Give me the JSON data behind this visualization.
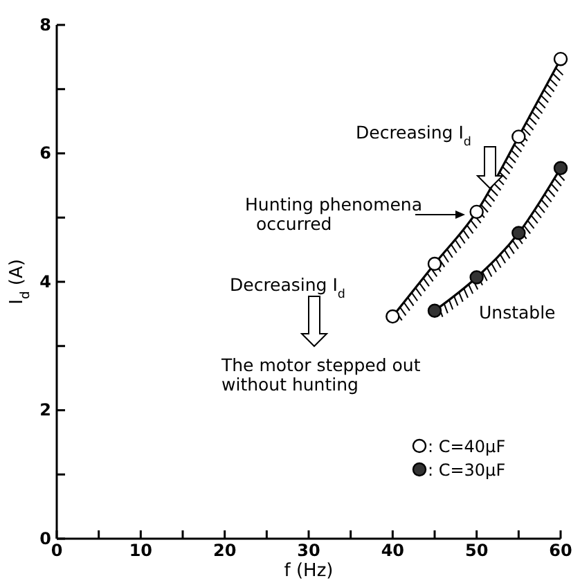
{
  "chart_data": {
    "type": "line",
    "xlabel": "f (Hz)",
    "ylabel": "I$_{d}$ (A)",
    "xlim": [
      0,
      60
    ],
    "xticks": [
      0,
      {
        "value": 5,
        "label": null
      },
      10,
      {
        "value": 15,
        "label": null
      },
      20,
      {
        "value": 25,
        "label": null
      },
      30,
      {
        "value": 35,
        "label": null
      },
      40,
      {
        "value": 45,
        "label": null
      },
      50,
      {
        "value": 55,
        "label": null
      },
      60
    ],
    "ylim": [
      0,
      8
    ],
    "yticks": [
      0,
      {
        "value": 1,
        "label": null
      },
      2,
      {
        "value": 3,
        "label": null
      },
      4,
      {
        "value": 5,
        "label": null
      },
      6,
      {
        "value": 7,
        "label": null
      },
      8
    ],
    "marker": "circle",
    "line_style": "solid",
    "grid": false,
    "legend": "bottom right",
    "series": [
      {
        "name": ": C=40μF",
        "color": "#ffffff",
        "x": [
          40,
          45,
          50,
          55,
          60
        ],
        "values": [
          3.46,
          4.28,
          5.09,
          6.26,
          7.47
        ]
      },
      {
        "name": ": C=30μF",
        "color": "#333333",
        "x": [
          45,
          50,
          55,
          60
        ],
        "values": [
          3.55,
          4.07,
          4.76,
          5.77
        ]
      }
    ],
    "annotations": [
      "Decreasing I$_{d}$",
      "Hunting phenomena\noccurred",
      "Decreasing I$_{d}$",
      "The motor stepped out\nwithout hunting",
      "Unstable"
    ]
  }
}
